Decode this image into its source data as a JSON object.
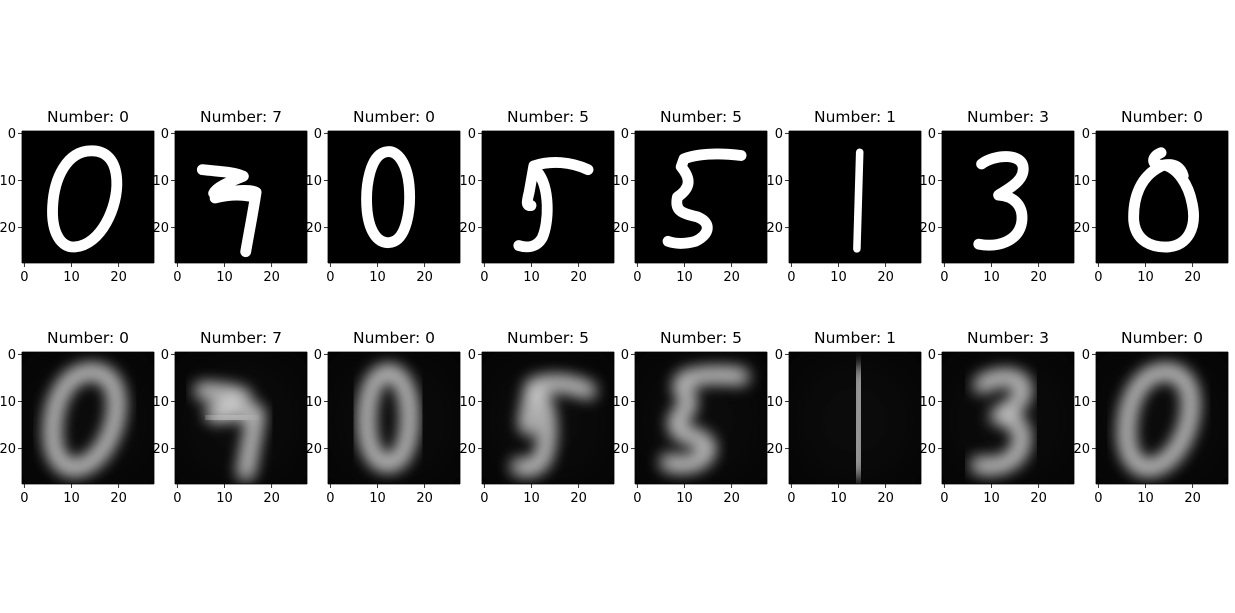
{
  "figure": {
    "rows": [
      {
        "name": "original-images",
        "panels": [
          {
            "title": "Number: 0",
            "digit": 0
          },
          {
            "title": "Number: 7",
            "digit": 7
          },
          {
            "title": "Number: 0",
            "digit": 0
          },
          {
            "title": "Number: 5",
            "digit": 5
          },
          {
            "title": "Number: 5",
            "digit": 5
          },
          {
            "title": "Number: 1",
            "digit": 1
          },
          {
            "title": "Number: 3",
            "digit": 3
          },
          {
            "title": "Number: 0",
            "digit": 0
          }
        ]
      },
      {
        "name": "reconstructed-images",
        "panels": [
          {
            "title": "Number: 0",
            "digit": 0
          },
          {
            "title": "Number: 7",
            "digit": 7
          },
          {
            "title": "Number: 0",
            "digit": 0
          },
          {
            "title": "Number: 5",
            "digit": 5
          },
          {
            "title": "Number: 5",
            "digit": 5
          },
          {
            "title": "Number: 1",
            "digit": 1
          },
          {
            "title": "Number: 3",
            "digit": 3
          },
          {
            "title": "Number: 0",
            "digit": 0
          }
        ]
      }
    ],
    "x_ticks": [
      "0",
      "10",
      "20"
    ],
    "y_ticks": [
      "0",
      "10",
      "20"
    ],
    "image_size": 28,
    "colors": {
      "background": "#000000",
      "stroke": "#ffffff",
      "axis": "#000000"
    }
  }
}
